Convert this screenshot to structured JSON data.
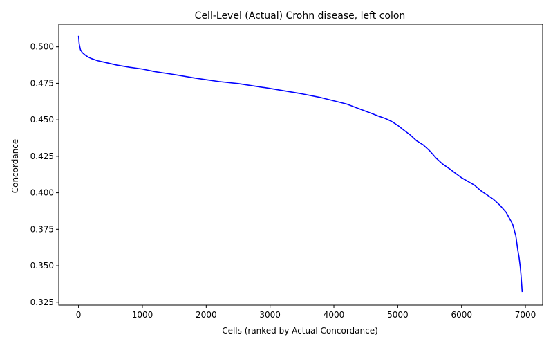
{
  "chart_data": {
    "type": "line",
    "title": "Cell-Level (Actual) Crohn disease, left colon",
    "xlabel": "Cells (ranked by Actual Concordance)",
    "ylabel": "Concordance",
    "xlim": [
      -310,
      7270
    ],
    "ylim": [
      0.323,
      0.5155
    ],
    "xticks": [
      0,
      1000,
      2000,
      3000,
      4000,
      5000,
      6000,
      7000
    ],
    "yticks": [
      0.325,
      0.35,
      0.375,
      0.4,
      0.425,
      0.45,
      0.475,
      0.5
    ],
    "ytick_labels": [
      "0.325",
      "0.350",
      "0.375",
      "0.400",
      "0.425",
      "0.450",
      "0.475",
      "0.500"
    ],
    "grid": false,
    "line_color": "#0000ff",
    "series": [
      {
        "x": [
          0,
          10,
          30,
          60,
          100,
          150,
          200,
          300,
          400,
          500,
          600,
          800,
          1000,
          1200,
          1500,
          1800,
          2000,
          2200,
          2500,
          2800,
          3000,
          3200,
          3500,
          3800,
          4000,
          4200,
          4400,
          4600,
          4700,
          4800,
          4900,
          5000,
          5100,
          5200,
          5300,
          5400,
          5500,
          5600,
          5700,
          5800,
          5900,
          6000,
          6100,
          6200,
          6300,
          6400,
          6500,
          6600,
          6700,
          6800,
          6850,
          6880,
          6900,
          6920,
          6930,
          6940,
          6950
        ],
        "y": [
          0.5075,
          0.502,
          0.498,
          0.496,
          0.4945,
          0.493,
          0.492,
          0.4905,
          0.4895,
          0.4885,
          0.4875,
          0.486,
          0.4848,
          0.483,
          0.481,
          0.4788,
          0.4775,
          0.4762,
          0.4748,
          0.4728,
          0.4715,
          0.47,
          0.4678,
          0.4652,
          0.463,
          0.4608,
          0.4575,
          0.4542,
          0.4525,
          0.451,
          0.449,
          0.4462,
          0.4428,
          0.4395,
          0.4355,
          0.4328,
          0.4288,
          0.4238,
          0.4198,
          0.4168,
          0.4135,
          0.4103,
          0.4078,
          0.4053,
          0.4015,
          0.3985,
          0.3955,
          0.3915,
          0.3865,
          0.3785,
          0.3705,
          0.361,
          0.356,
          0.349,
          0.344,
          0.338,
          0.332
        ]
      }
    ]
  }
}
